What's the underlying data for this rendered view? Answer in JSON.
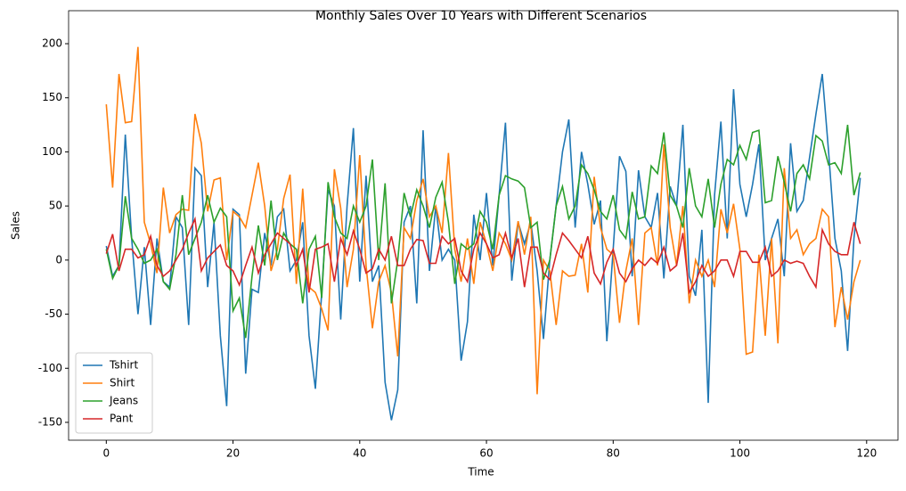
{
  "chart_data": {
    "type": "line",
    "title": "Monthly Sales Over 10 Years with Different Scenarios",
    "x_label": "Time",
    "y_label": "Sales",
    "x": [
      0,
      1,
      2,
      3,
      4,
      5,
      6,
      7,
      8,
      9,
      10,
      11,
      12,
      13,
      14,
      15,
      16,
      17,
      18,
      19,
      20,
      21,
      22,
      23,
      24,
      25,
      26,
      27,
      28,
      29,
      30,
      31,
      32,
      33,
      34,
      35,
      36,
      37,
      38,
      39,
      40,
      41,
      42,
      43,
      44,
      45,
      46,
      47,
      48,
      49,
      50,
      51,
      52,
      53,
      54,
      55,
      56,
      57,
      58,
      59,
      60,
      61,
      62,
      63,
      64,
      65,
      66,
      67,
      68,
      69,
      70,
      71,
      72,
      73,
      74,
      75,
      76,
      77,
      78,
      79,
      80,
      81,
      82,
      83,
      84,
      85,
      86,
      87,
      88,
      89,
      90,
      91,
      92,
      93,
      94,
      95,
      96,
      97,
      98,
      99,
      100,
      101,
      102,
      103,
      104,
      105,
      106,
      107,
      108,
      109,
      110,
      111,
      112,
      113,
      114,
      115,
      116,
      117,
      118,
      119
    ],
    "series": [
      {
        "name": "Tshirt",
        "color": "#1f77b4",
        "values": [
          13,
          -15,
          -5,
          116,
          20,
          -50,
          12,
          -60,
          20,
          -20,
          -25,
          40,
          30,
          -60,
          85,
          78,
          -25,
          35,
          -70,
          -135,
          47,
          42,
          -105,
          -27,
          -30,
          25,
          -5,
          40,
          47,
          -10,
          0,
          35,
          -70,
          -119,
          -30,
          65,
          50,
          -55,
          50,
          122,
          -20,
          78,
          -20,
          -5,
          -113,
          -148,
          -120,
          35,
          50,
          -40,
          120,
          -10,
          50,
          0,
          10,
          0,
          -93,
          -57,
          42,
          0,
          62,
          -5,
          60,
          127,
          -19,
          35,
          15,
          35,
          -10,
          -73,
          0,
          50,
          100,
          130,
          30,
          100,
          70,
          33,
          55,
          -75,
          10,
          96,
          82,
          -15,
          83,
          40,
          30,
          62,
          -17,
          68,
          50,
          125,
          -15,
          -33,
          28,
          -132,
          60,
          128,
          20,
          158,
          70,
          40,
          70,
          107,
          0,
          20,
          38,
          -15,
          108,
          45,
          55,
          95,
          135,
          172,
          100,
          20,
          -10,
          -84,
          20,
          76
        ]
      },
      {
        "name": "Shirt",
        "color": "#ff7f0e",
        "values": [
          144,
          67,
          172,
          127,
          128,
          197,
          35,
          15,
          -12,
          67,
          25,
          42,
          47,
          46,
          135,
          108,
          45,
          74,
          76,
          0,
          45,
          40,
          30,
          60,
          90,
          50,
          -10,
          10,
          57,
          79,
          -22,
          66,
          -25,
          -30,
          -45,
          -65,
          84,
          48,
          -25,
          10,
          97,
          -5,
          -63,
          -20,
          -5,
          -30,
          -89,
          30,
          20,
          55,
          75,
          40,
          50,
          25,
          99,
          10,
          -20,
          20,
          -22,
          35,
          15,
          -10,
          25,
          15,
          0,
          36,
          5,
          40,
          -124,
          0,
          -10,
          -60,
          -10,
          -15,
          -14,
          15,
          -30,
          77,
          30,
          10,
          5,
          -58,
          -10,
          20,
          -60,
          25,
          30,
          -5,
          107,
          30,
          -5,
          50,
          -40,
          0,
          -15,
          0,
          -25,
          47,
          25,
          52,
          10,
          -87,
          -85,
          5,
          -70,
          20,
          -77,
          85,
          20,
          28,
          5,
          15,
          20,
          47,
          40,
          -62,
          -25,
          -55,
          -20,
          0
        ]
      },
      {
        "name": "Jeans",
        "color": "#2ca02c",
        "values": [
          10,
          -17,
          -5,
          59,
          20,
          10,
          -3,
          0,
          10,
          -20,
          -27,
          5,
          60,
          5,
          20,
          35,
          60,
          35,
          48,
          40,
          -47,
          -35,
          -72,
          -15,
          32,
          -5,
          55,
          0,
          25,
          15,
          10,
          -40,
          10,
          22,
          -35,
          72,
          40,
          25,
          20,
          50,
          35,
          50,
          93,
          0,
          71,
          -40,
          0,
          62,
          40,
          65,
          50,
          30,
          58,
          72,
          35,
          -22,
          15,
          10,
          15,
          45,
          35,
          10,
          60,
          78,
          75,
          73,
          67,
          30,
          35,
          -18,
          0,
          50,
          68,
          38,
          50,
          88,
          80,
          65,
          45,
          38,
          60,
          28,
          20,
          63,
          38,
          40,
          87,
          80,
          118,
          60,
          50,
          30,
          85,
          50,
          40,
          75,
          30,
          70,
          93,
          88,
          106,
          93,
          118,
          120,
          53,
          55,
          96,
          72,
          45,
          80,
          88,
          75,
          115,
          110,
          88,
          90,
          80,
          125,
          60,
          81
        ]
      },
      {
        "name": "Pant",
        "color": "#d62728",
        "values": [
          6,
          24,
          -10,
          10,
          10,
          2,
          5,
          22,
          -5,
          -15,
          -10,
          0,
          10,
          25,
          38,
          -10,
          2,
          8,
          14,
          -5,
          -10,
          -23,
          -5,
          12,
          -12,
          5,
          15,
          25,
          20,
          15,
          -5,
          10,
          -30,
          10,
          12,
          15,
          -20,
          20,
          5,
          27,
          10,
          -12,
          -8,
          10,
          0,
          22,
          -5,
          -5,
          10,
          19,
          18,
          -3,
          -3,
          22,
          15,
          20,
          -10,
          -20,
          10,
          25,
          15,
          2,
          5,
          25,
          2,
          20,
          -25,
          12,
          12,
          -12,
          -18,
          5,
          25,
          18,
          10,
          2,
          22,
          -12,
          -22,
          -2,
          10,
          -12,
          -20,
          -8,
          0,
          -5,
          2,
          -3,
          12,
          -10,
          -5,
          25,
          -30,
          -20,
          -5,
          -15,
          -10,
          0,
          0,
          -15,
          8,
          8,
          -2,
          -2,
          12,
          -15,
          -10,
          0,
          -3,
          -1,
          -3,
          -15,
          -25,
          28,
          15,
          8,
          5,
          5,
          35,
          15
        ]
      }
    ],
    "xlim": [
      -5.95,
      124.95
    ],
    "ylim": [
      -166.5,
      230.5
    ],
    "xticks": [
      0,
      20,
      40,
      60,
      80,
      100,
      120
    ],
    "yticks": [
      -150,
      -100,
      -50,
      0,
      50,
      100,
      150,
      200
    ],
    "legend": "lower left"
  }
}
